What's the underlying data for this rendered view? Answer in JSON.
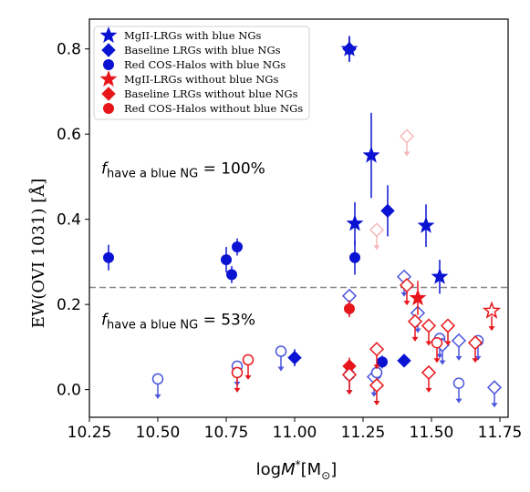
{
  "chart_data": {
    "type": "scatter",
    "xlabel_parts": [
      "log",
      "M",
      "*",
      "[M",
      "⊙",
      "]"
    ],
    "ylabel": "EW(OVI 1031) [Å]",
    "xlim": [
      10.25,
      11.78
    ],
    "ylim": [
      -0.065,
      0.87
    ],
    "xticks": [
      "10.25",
      "10.50",
      "10.75",
      "11.00",
      "11.25",
      "11.50",
      "11.75"
    ],
    "yticks": [
      "0.0",
      "0.2",
      "0.4",
      "0.6",
      "0.8"
    ],
    "threshold": 0.24,
    "annotations": [
      {
        "prefix": "f",
        "subscript": "have a blue NG",
        "value": " = 100%",
        "y": 0.52
      },
      {
        "prefix": "f",
        "subscript": "have a blue NG",
        "value": " = 53%",
        "y": 0.165
      }
    ],
    "legend": {
      "position": "upper-left",
      "entries": [
        {
          "label": "MgII-LRGs with blue NGs",
          "marker": "star",
          "color": "#0a13d2"
        },
        {
          "label": "Baseline LRGs with blue NGs",
          "marker": "diamond",
          "color": "#0a13d2"
        },
        {
          "label": "Red COS-Halos with blue NGs",
          "marker": "circle",
          "color": "#0a13d2"
        },
        {
          "label": "MgII-LRGs without blue NGs",
          "marker": "star",
          "color": "#e8161b"
        },
        {
          "label": "Baseline LRGs without blue NGs",
          "marker": "diamond",
          "color": "#e8161b"
        },
        {
          "label": "Red COS-Halos without blue NGs",
          "marker": "circle",
          "color": "#e8161b"
        }
      ]
    },
    "colors": {
      "blue": "#0a13d2",
      "red": "#e8161b",
      "light_blue": "#7f86e6",
      "light_red": "#f08a8c",
      "faint_red": "#f6b8b9"
    },
    "series": [
      {
        "name": "MgII-LRGs with blue NGs",
        "marker": "star",
        "filled": true,
        "color": "#0a13d2",
        "points": [
          {
            "x": 11.2,
            "y": 0.8,
            "yerr": 0.03
          },
          {
            "x": 11.28,
            "y": 0.55,
            "yerr": 0.1
          },
          {
            "x": 11.22,
            "y": 0.39,
            "yerr": 0.05
          },
          {
            "x": 11.48,
            "y": 0.385,
            "yerr": 0.05
          },
          {
            "x": 11.53,
            "y": 0.265,
            "yerr": 0.04
          }
        ]
      },
      {
        "name": "Baseline LRGs with blue NGs",
        "marker": "diamond",
        "filled": true,
        "color": "#0a13d2",
        "points": [
          {
            "x": 11.2,
            "y": 0.8,
            "yerr": 0.03
          },
          {
            "x": 11.34,
            "y": 0.42,
            "yerr": 0.06
          },
          {
            "x": 11.0,
            "y": 0.075,
            "yerr": 0.02
          },
          {
            "x": 11.4,
            "y": 0.068,
            "yerr": 0.01
          }
        ]
      },
      {
        "name": "Red COS-Halos with blue NGs",
        "marker": "circle",
        "filled": true,
        "color": "#0a13d2",
        "points": [
          {
            "x": 10.32,
            "y": 0.31,
            "yerr": 0.03
          },
          {
            "x": 10.75,
            "y": 0.305,
            "yerr": 0.03
          },
          {
            "x": 10.77,
            "y": 0.27,
            "yerr": 0.02
          },
          {
            "x": 10.79,
            "y": 0.335,
            "yerr": 0.02
          },
          {
            "x": 11.22,
            "y": 0.31,
            "yerr": 0.04
          },
          {
            "x": 11.32,
            "y": 0.065,
            "yerr": 0.015
          }
        ]
      },
      {
        "name": "Blue-NG upper limits",
        "marker": "open",
        "filled": false,
        "color": "#4a55dd",
        "limit": "upper",
        "points": [
          {
            "x": 10.5,
            "y": 0.025,
            "shape": "circle"
          },
          {
            "x": 10.79,
            "y": 0.055,
            "shape": "circle"
          },
          {
            "x": 10.95,
            "y": 0.09,
            "shape": "circle"
          },
          {
            "x": 11.2,
            "y": 0.22,
            "shape": "diamond"
          },
          {
            "x": 11.2,
            "y": 0.035,
            "shape": "circle"
          },
          {
            "x": 11.29,
            "y": 0.03,
            "shape": "diamond"
          },
          {
            "x": 11.3,
            "y": 0.04,
            "shape": "circle"
          },
          {
            "x": 11.4,
            "y": 0.265,
            "shape": "diamond"
          },
          {
            "x": 11.45,
            "y": 0.18,
            "shape": "diamond"
          },
          {
            "x": 11.53,
            "y": 0.12,
            "shape": "circle"
          },
          {
            "x": 11.54,
            "y": 0.105,
            "shape": "diamond"
          },
          {
            "x": 11.6,
            "y": 0.115,
            "shape": "diamond"
          },
          {
            "x": 11.6,
            "y": 0.015,
            "shape": "circle"
          },
          {
            "x": 11.67,
            "y": 0.115,
            "shape": "circle"
          },
          {
            "x": 11.73,
            "y": 0.005,
            "shape": "diamond"
          }
        ]
      },
      {
        "name": "MgII-LRGs without blue NGs",
        "marker": "star",
        "filled": true,
        "color": "#e8161b",
        "points": [
          {
            "x": 11.45,
            "y": 0.215,
            "yerr": 0.04
          }
        ]
      },
      {
        "name": "Baseline LRGs without blue NGs",
        "marker": "diamond",
        "filled": true,
        "color": "#e8161b",
        "points": [
          {
            "x": 11.2,
            "y": 0.055,
            "yerr": 0.02
          }
        ]
      },
      {
        "name": "Red COS-Halos without blue NGs",
        "marker": "circle",
        "filled": true,
        "color": "#e8161b",
        "points": [
          {
            "x": 11.2,
            "y": 0.19,
            "yerr": 0.02
          }
        ]
      },
      {
        "name": "Red-NG upper limits",
        "marker": "open",
        "filled": false,
        "color": "#e8161b",
        "limit": "upper",
        "points": [
          {
            "x": 10.79,
            "y": 0.04,
            "shape": "circle"
          },
          {
            "x": 10.83,
            "y": 0.07,
            "shape": "circle"
          },
          {
            "x": 11.2,
            "y": 0.035,
            "shape": "diamond"
          },
          {
            "x": 11.3,
            "y": 0.095,
            "shape": "diamond"
          },
          {
            "x": 11.3,
            "y": 0.01,
            "shape": "diamond"
          },
          {
            "x": 11.41,
            "y": 0.245,
            "shape": "diamond"
          },
          {
            "x": 11.44,
            "y": 0.16,
            "shape": "diamond"
          },
          {
            "x": 11.49,
            "y": 0.15,
            "shape": "diamond"
          },
          {
            "x": 11.49,
            "y": 0.04,
            "shape": "diamond"
          },
          {
            "x": 11.52,
            "y": 0.11,
            "shape": "circle"
          },
          {
            "x": 11.56,
            "y": 0.15,
            "shape": "diamond"
          },
          {
            "x": 11.66,
            "y": 0.11,
            "shape": "diamond"
          },
          {
            "x": 11.72,
            "y": 0.185,
            "shape": "star"
          }
        ]
      },
      {
        "name": "Faint upper limits",
        "marker": "open",
        "filled": false,
        "color": "#f6b8b9",
        "limit": "upper",
        "points": [
          {
            "x": 11.3,
            "y": 0.375,
            "shape": "diamond"
          },
          {
            "x": 11.41,
            "y": 0.595,
            "shape": "diamond"
          }
        ]
      }
    ]
  }
}
